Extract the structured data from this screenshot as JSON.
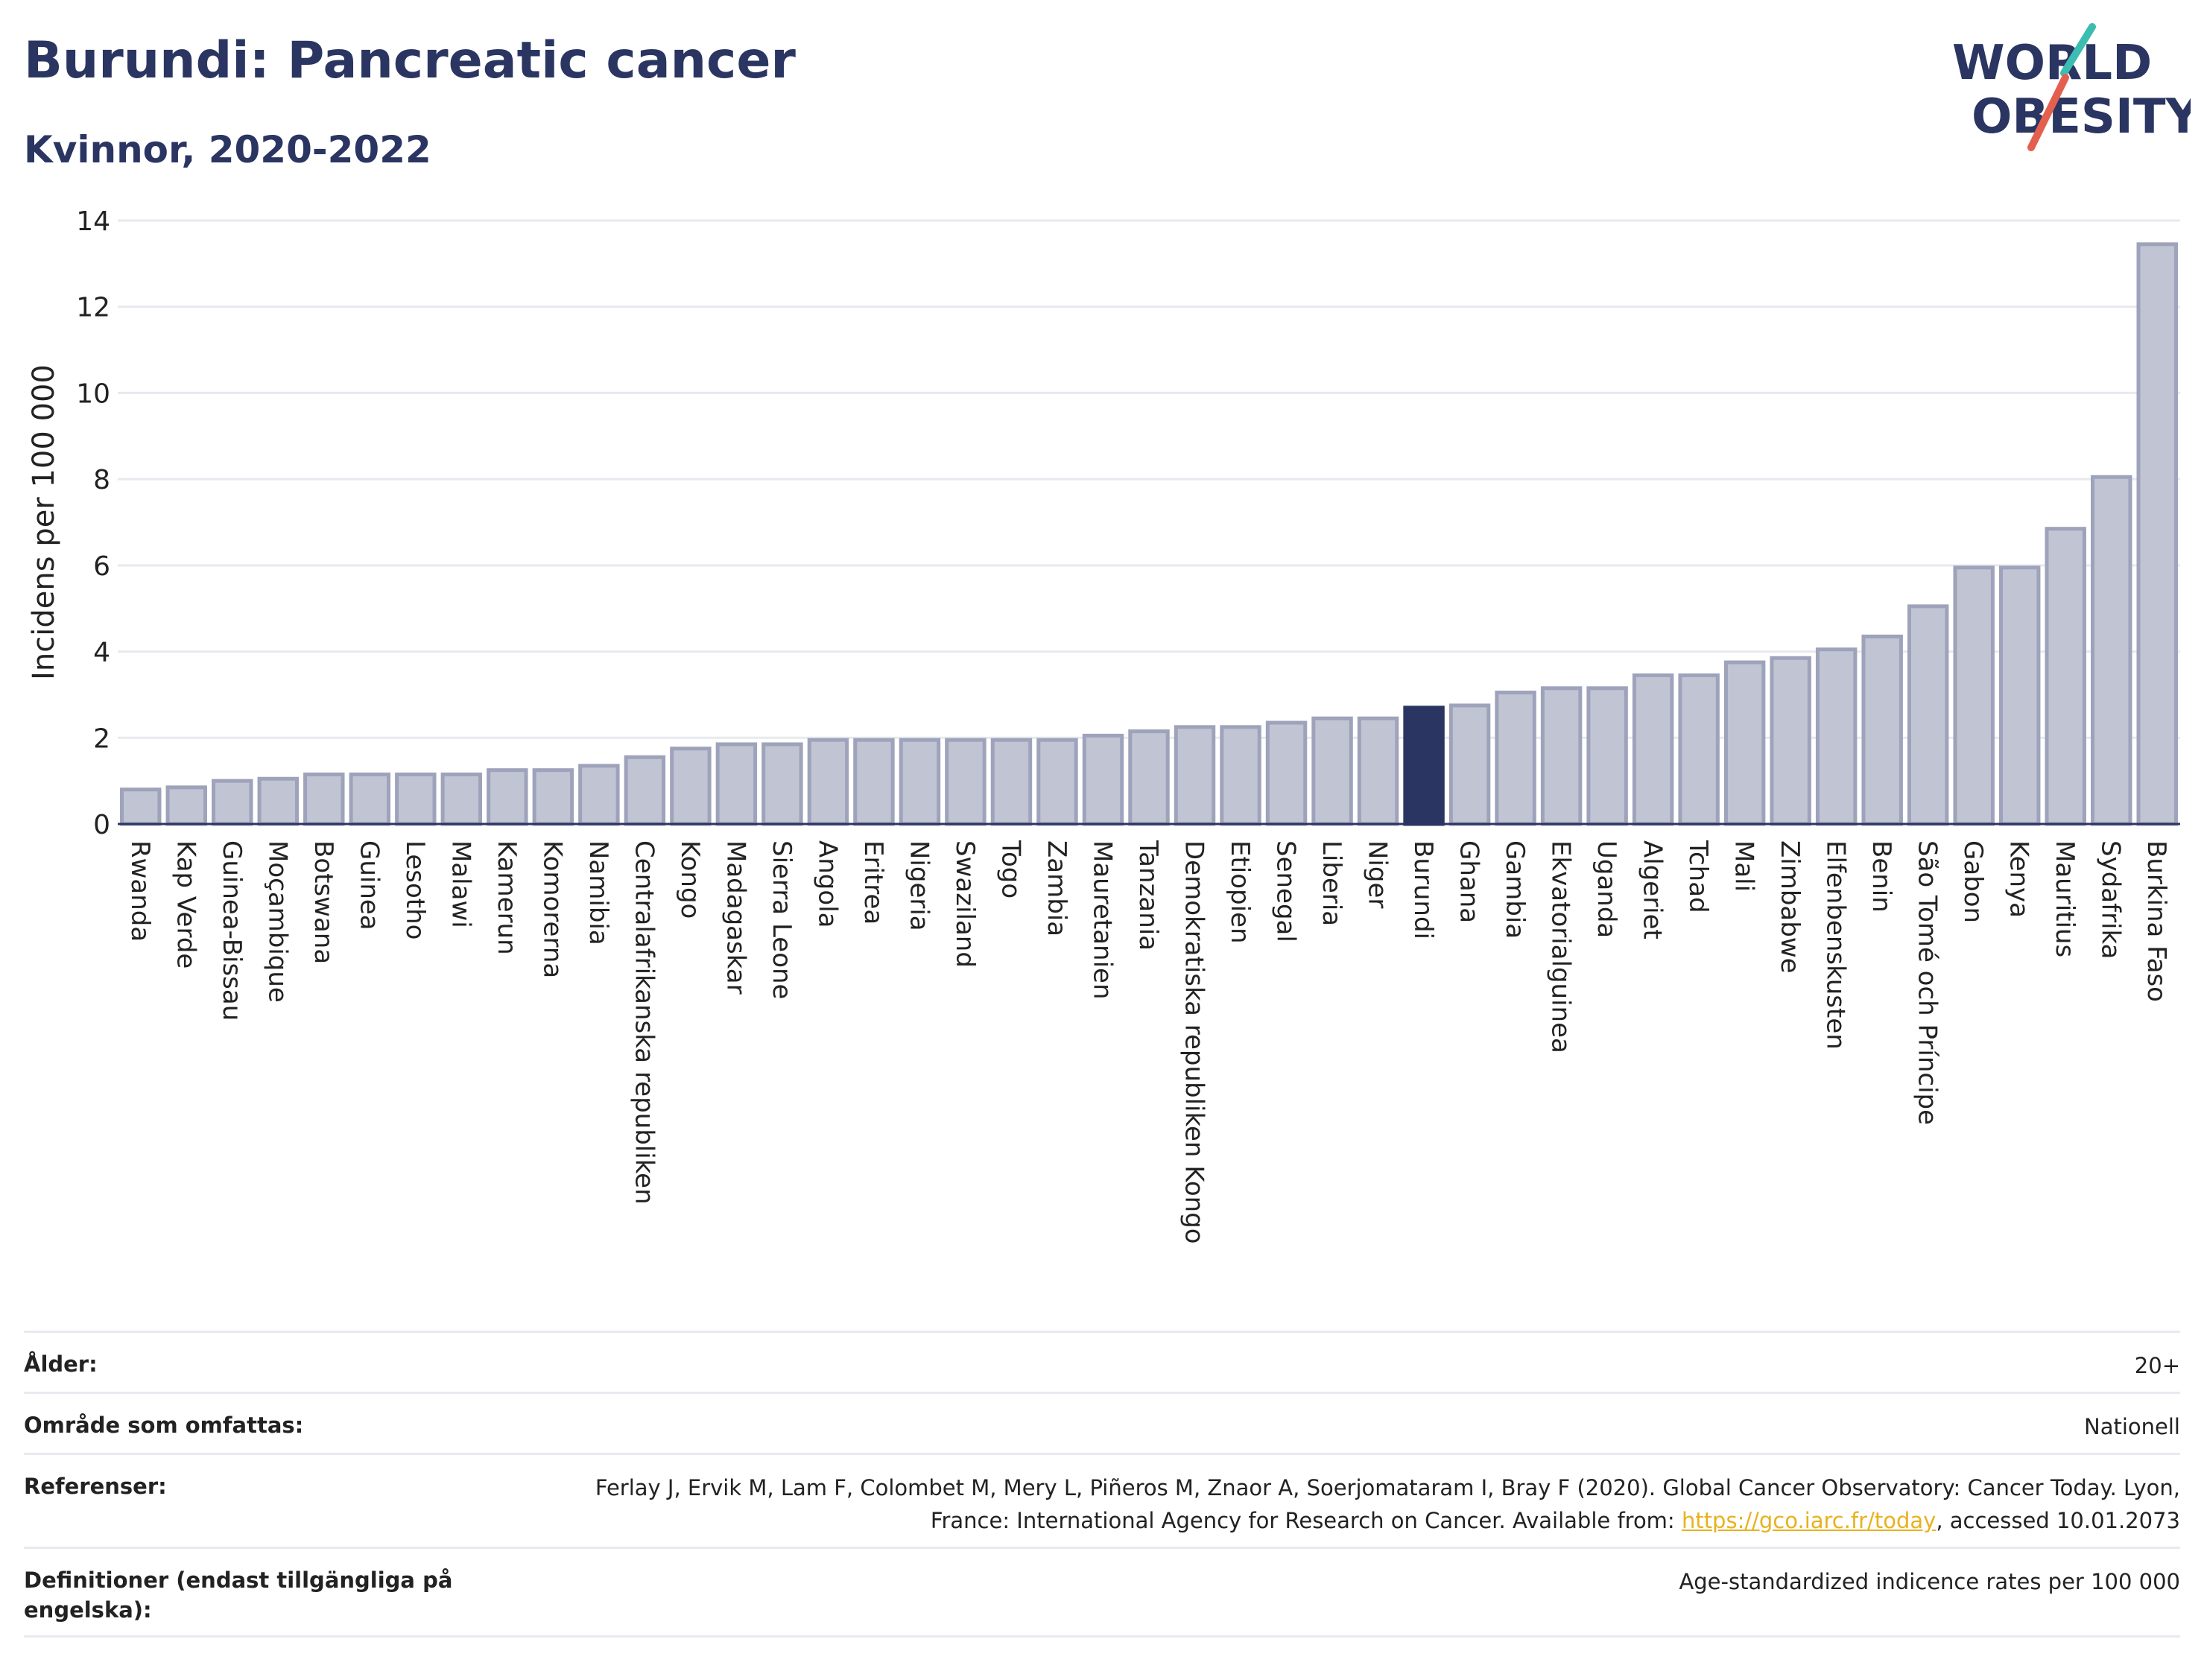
{
  "header": {
    "title": "Burundi: Pancreatic cancer",
    "subtitle": "Kvinnor, 2020-2022"
  },
  "logo": {
    "line1": "WORLD",
    "line2": "OBESITY",
    "colors": {
      "text": "#2b3562",
      "slash_red": "#e4604e",
      "slash_teal": "#3bbdb1"
    }
  },
  "chart_data": {
    "type": "bar",
    "title": "Burundi: Pancreatic cancer",
    "subtitle": "Kvinnor, 2020-2022",
    "xlabel": "",
    "ylabel": "Incidens per 100 000",
    "ylim": [
      0,
      14
    ],
    "yticks": [
      0,
      2,
      4,
      6,
      8,
      10,
      12,
      14
    ],
    "grid": true,
    "highlight": "Burundi",
    "colors": {
      "bar": "#c0c4d3",
      "bar_edge": "#9ea3bb",
      "highlight": "#2b3562",
      "grid": "#e8e9ef",
      "axis": "#2b3562"
    },
    "categories": [
      "Rwanda",
      "Kap Verde",
      "Guinea-Bissau",
      "Moçambique",
      "Botswana",
      "Guinea",
      "Lesotho",
      "Malawi",
      "Kamerun",
      "Komorerna",
      "Namibia",
      "Centralafrikanska republiken",
      "Kongo",
      "Madagaskar",
      "Sierra Leone",
      "Angola",
      "Eritrea",
      "Nigeria",
      "Swaziland",
      "Togo",
      "Zambia",
      "Mauretanien",
      "Tanzania",
      "Demokratiska republiken Kongo",
      "Etiopien",
      "Senegal",
      "Liberia",
      "Niger",
      "Burundi",
      "Ghana",
      "Gambia",
      "Ekvatorialguinea",
      "Uganda",
      "Algeriet",
      "Tchad",
      "Mali",
      "Zimbabwe",
      "Elfenbenskusten",
      "Benin",
      "São Tomé och Príncipe",
      "Gabon",
      "Kenya",
      "Mauritius",
      "Sydafrika",
      "Burkina Faso"
    ],
    "values": [
      0.8,
      0.85,
      1.0,
      1.05,
      1.15,
      1.15,
      1.15,
      1.15,
      1.25,
      1.25,
      1.35,
      1.55,
      1.75,
      1.85,
      1.85,
      1.95,
      1.95,
      1.95,
      1.95,
      1.95,
      1.95,
      2.05,
      2.15,
      2.25,
      2.25,
      2.35,
      2.45,
      2.45,
      2.7,
      2.75,
      3.05,
      3.15,
      3.15,
      3.45,
      3.45,
      3.75,
      3.85,
      4.05,
      4.35,
      5.05,
      5.95,
      5.95,
      6.85,
      8.05,
      13.45
    ]
  },
  "meta": [
    {
      "label": "Ålder:",
      "value": "20+"
    },
    {
      "label": "Område som omfattas:",
      "value": "Nationell"
    },
    {
      "label": "Referenser:",
      "value_pre": "Ferlay J, Ervik M, Lam F, Colombet M, Mery L, Piñeros M, Znaor A, Soerjomataram I, Bray F (2020). Global Cancer Observatory: Cancer Today. Lyon, France: International Agency for Research on Cancer. Available from: ",
      "link": "https://gco.iarc.fr/today",
      "value_post": ", accessed 10.01.2073"
    },
    {
      "label": "Definitioner (endast tillgängliga på engelska):",
      "value": "Age-standardized indicence rates per 100 000"
    }
  ]
}
